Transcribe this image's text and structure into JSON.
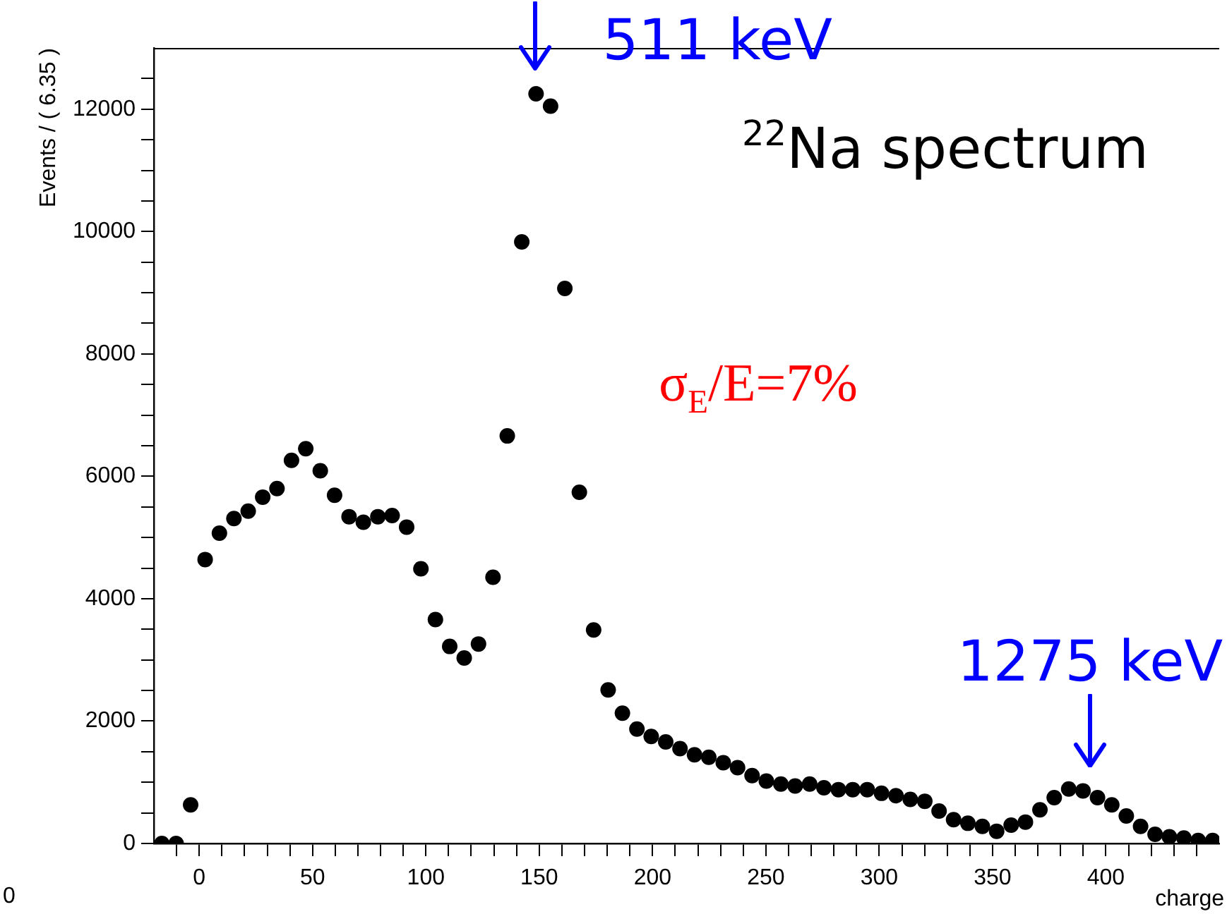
{
  "chart_data": {
    "type": "scatter",
    "title": "$^{22}$Na spectrum",
    "xlabel": "charge",
    "ylabel": "Events / ( 6.35 )",
    "x": [
      -16.5,
      -10.2,
      -3.8,
      2.6,
      8.9,
      15.3,
      21.6,
      28.0,
      34.3,
      40.7,
      47.0,
      53.4,
      59.7,
      66.1,
      72.4,
      78.8,
      85.1,
      91.5,
      97.8,
      104.2,
      110.5,
      116.9,
      123.2,
      129.6,
      135.9,
      142.3,
      148.6,
      155.0,
      161.3,
      167.7,
      174.0,
      180.4,
      186.7,
      193.1,
      199.4,
      205.8,
      212.1,
      218.5,
      224.8,
      231.2,
      237.5,
      243.9,
      250.2,
      256.6,
      262.9,
      269.3,
      275.6,
      282.0,
      288.3,
      294.7,
      301.0,
      307.4,
      313.7,
      320.1,
      326.4,
      332.8,
      339.1,
      345.5,
      351.8,
      358.2,
      364.5,
      370.9,
      377.2,
      383.6,
      389.9,
      396.3,
      402.6,
      409.0,
      415.3,
      421.7,
      428.0,
      434.4,
      440.7,
      447.1
    ],
    "series": [
      {
        "color": "#000000",
        "values": [
          0,
          0,
          630,
          4640,
          5070,
          5310,
          5430,
          5660,
          5800,
          6260,
          6450,
          6090,
          5690,
          5340,
          5250,
          5340,
          5360,
          5170,
          4490,
          3660,
          3220,
          3030,
          3260,
          4350,
          6660,
          9830,
          12250,
          12050,
          9070,
          5740,
          3490,
          2510,
          2130,
          1870,
          1750,
          1660,
          1550,
          1450,
          1410,
          1320,
          1240,
          1110,
          1020,
          970,
          940,
          970,
          910,
          880,
          880,
          880,
          820,
          780,
          720,
          690,
          530,
          390,
          330,
          280,
          200,
          300,
          350,
          550,
          750,
          890,
          860,
          750,
          630,
          450,
          280,
          150,
          110,
          90,
          50,
          50
        ]
      }
    ],
    "marker": "circle",
    "xlim": [
      -20,
      450
    ],
    "xticks": [
      {
        "value": -10,
        "label": null
      },
      0,
      {
        "value": 10,
        "label": null
      },
      {
        "value": 20,
        "label": null
      },
      {
        "value": 30,
        "label": null
      },
      {
        "value": 40,
        "label": null
      },
      50,
      {
        "value": 60,
        "label": null
      },
      {
        "value": 70,
        "label": null
      },
      {
        "value": 80,
        "label": null
      },
      {
        "value": 90,
        "label": null
      },
      100,
      {
        "value": 110,
        "label": null
      },
      {
        "value": 120,
        "label": null
      },
      {
        "value": 130,
        "label": null
      },
      {
        "value": 140,
        "label": null
      },
      150,
      {
        "value": 160,
        "label": null
      },
      {
        "value": 170,
        "label": null
      },
      {
        "value": 180,
        "label": null
      },
      {
        "value": 190,
        "label": null
      },
      200,
      {
        "value": 210,
        "label": null
      },
      {
        "value": 220,
        "label": null
      },
      {
        "value": 230,
        "label": null
      },
      {
        "value": 240,
        "label": null
      },
      250,
      {
        "value": 260,
        "label": null
      },
      {
        "value": 270,
        "label": null
      },
      {
        "value": 280,
        "label": null
      },
      {
        "value": 290,
        "label": null
      },
      300,
      {
        "value": 310,
        "label": null
      },
      {
        "value": 320,
        "label": null
      },
      {
        "value": 330,
        "label": null
      },
      {
        "value": 340,
        "label": null
      },
      350,
      {
        "value": 360,
        "label": null
      },
      {
        "value": 370,
        "label": null
      },
      {
        "value": 380,
        "label": null
      },
      {
        "value": 390,
        "label": null
      },
      400,
      {
        "value": 410,
        "label": null
      },
      {
        "value": 420,
        "label": null
      },
      {
        "value": 430,
        "label": null
      },
      {
        "value": 440,
        "label": null
      }
    ],
    "ylim": [
      0,
      13000
    ],
    "yticks": [
      0,
      {
        "value": 500,
        "label": null
      },
      {
        "value": 1000,
        "label": null
      },
      {
        "value": 1500,
        "label": null
      },
      2000,
      {
        "value": 2500,
        "label": null
      },
      {
        "value": 3000,
        "label": null
      },
      {
        "value": 3500,
        "label": null
      },
      4000,
      {
        "value": 4500,
        "label": null
      },
      {
        "value": 5000,
        "label": null
      },
      {
        "value": 5500,
        "label": null
      },
      6000,
      {
        "value": 6500,
        "label": null
      },
      {
        "value": 7000,
        "label": null
      },
      {
        "value": 7500,
        "label": null
      },
      8000,
      {
        "value": 8500,
        "label": null
      },
      {
        "value": 9000,
        "label": null
      },
      {
        "value": 9500,
        "label": null
      },
      10000,
      {
        "value": 10500,
        "label": null
      },
      {
        "value": 11000,
        "label": null
      },
      {
        "value": 11500,
        "label": null
      },
      12000,
      {
        "value": 12500,
        "label": null
      }
    ],
    "grid": false,
    "legend": false,
    "annotations": [
      {
        "text": "511 keV",
        "x": 148,
        "y": 12250
      },
      {
        "text": "1275 keV",
        "x": 393,
        "y": 860
      },
      "σ$_{E}$/E=7%",
      "0"
    ]
  }
}
